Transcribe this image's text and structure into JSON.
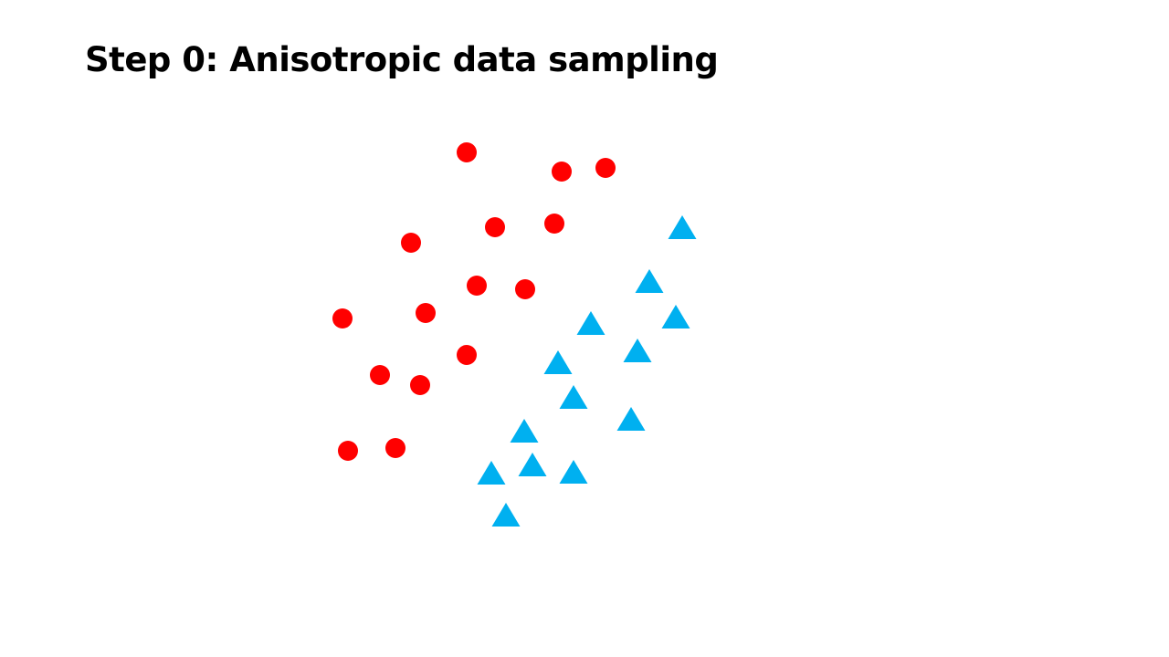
{
  "slide": {
    "title": "Step 0: Anisotropic data sampling"
  },
  "colors": {
    "class_a": "#ff0000",
    "class_b": "#00b0f0"
  },
  "chart_data": {
    "type": "scatter",
    "title": "",
    "xlabel": "",
    "ylabel": "",
    "axes_visible": false,
    "grid": false,
    "series": [
      {
        "marker": "circle",
        "color": "#ff0000",
        "points": [
          [
            511,
            167
          ],
          [
            615,
            188
          ],
          [
            663,
            184
          ],
          [
            542,
            249
          ],
          [
            607,
            245
          ],
          [
            450,
            266
          ],
          [
            522,
            313
          ],
          [
            575,
            317
          ],
          [
            375,
            349
          ],
          [
            466,
            343
          ],
          [
            511,
            389
          ],
          [
            416,
            411
          ],
          [
            460,
            422
          ],
          [
            381,
            494
          ],
          [
            433,
            491
          ]
        ]
      },
      {
        "marker": "triangle",
        "color": "#00b0f0",
        "points": [
          [
            747,
            249
          ],
          [
            711,
            308
          ],
          [
            740,
            347
          ],
          [
            647,
            354
          ],
          [
            698,
            384
          ],
          [
            611,
            397
          ],
          [
            628,
            435
          ],
          [
            691,
            459
          ],
          [
            574,
            472
          ],
          [
            538,
            518
          ],
          [
            583,
            509
          ],
          [
            628,
            517
          ],
          [
            554,
            564
          ]
        ]
      }
    ]
  }
}
